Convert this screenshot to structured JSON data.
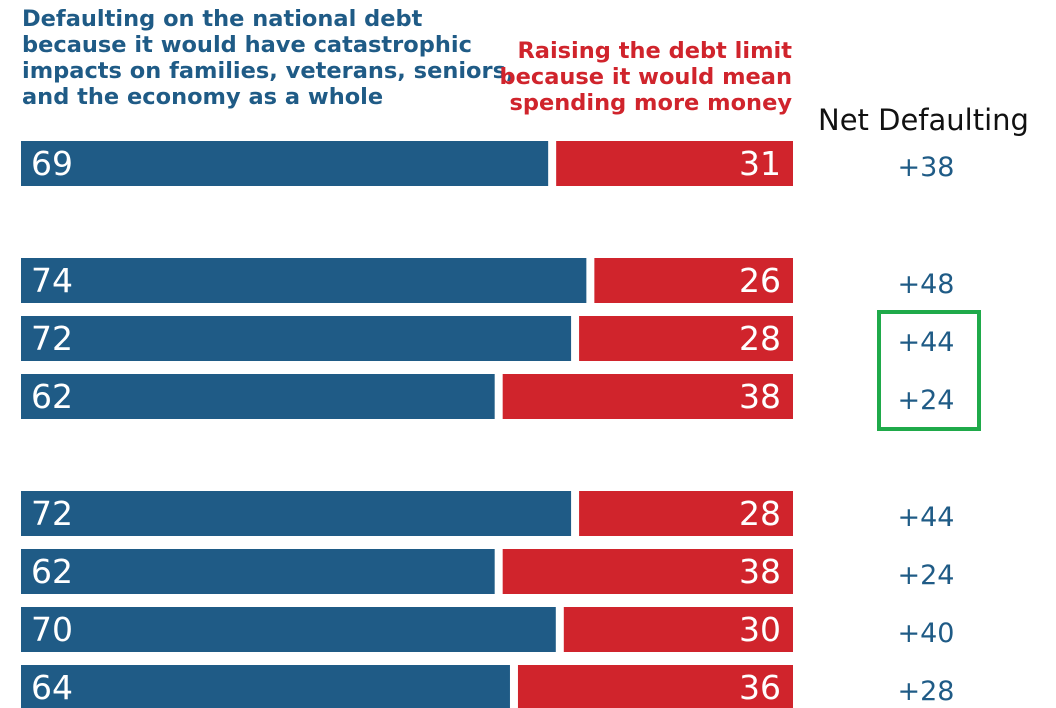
{
  "chart_data": {
    "type": "bar",
    "orientation": "horizontal",
    "stacked": true,
    "legend_placement": "top",
    "grid": false,
    "series": [
      {
        "name": "Defaulting on the national debt because it would have catastrophic impacts on families, veterans, seniors, and the economy as a whole",
        "name_lines": [
          "Defaulting on the national debt",
          "because it would have catastrophic",
          "impacts on families, veterans, seniors,",
          "and the economy as a whole"
        ],
        "color": "#1f5b86",
        "values": [
          69,
          74,
          72,
          62,
          72,
          62,
          70,
          64
        ]
      },
      {
        "name": "Raising the debt limit because it would mean spending more money",
        "name_lines": [
          "Raising the debt limit",
          "because it would mean",
          "spending more money"
        ],
        "color": "#d0242c",
        "values": [
          31,
          26,
          28,
          38,
          28,
          38,
          30,
          36
        ]
      }
    ],
    "net_header": "Net Defaulting",
    "net_values": [
      "+38",
      "+48",
      "+44",
      "+24",
      "+44",
      "+24",
      "+40",
      "+28"
    ],
    "groups": [
      [
        0
      ],
      [
        1,
        2,
        3
      ],
      [
        4,
        5,
        6,
        7
      ]
    ],
    "highlighted_rows": [
      2,
      3
    ],
    "highlight_color": "#1faa4a"
  }
}
